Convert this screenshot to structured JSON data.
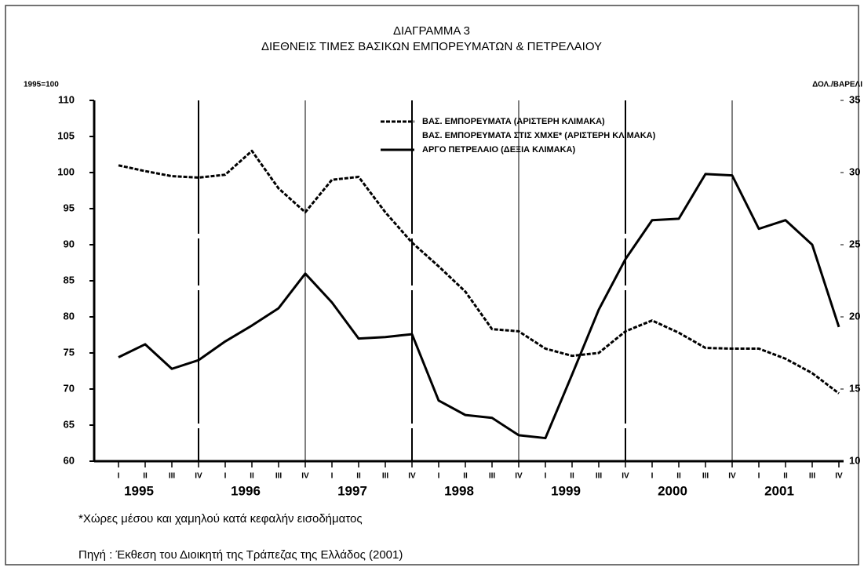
{
  "chart_data": {
    "type": "line",
    "title": "ΔΙΑΓΡΑΜΜΑ 3",
    "subtitle": "ΔΙΕΘΝΕΙΣ ΤΙΜΕΣ ΒΑΣΙΚΩΝ ΕΜΠΟΡΕΥΜΑΤΩΝ & ΠΕΤΡΕΛΑΙΟΥ",
    "y_label": "1995=100",
    "y2_label": "ΔΟΛ./ΒΑΡΕΛΙ",
    "categories": [
      "I",
      "II",
      "III",
      "IV",
      "I",
      "II",
      "III",
      "IV",
      "I",
      "II",
      "III",
      "IV",
      "I",
      "II",
      "III",
      "IV",
      "I",
      "II",
      "III",
      "IV",
      "I",
      "II",
      "III",
      "IV",
      "I",
      "II",
      "III",
      "IV"
    ],
    "year_labels": [
      "1995",
      "1996",
      "1997",
      "1998",
      "1999",
      "2000",
      "2001"
    ],
    "ylim": [
      60,
      110
    ],
    "yticks": [
      60,
      65,
      70,
      75,
      80,
      85,
      90,
      95,
      100,
      105,
      110
    ],
    "y2lim": [
      10,
      35
    ],
    "y2ticks": [
      10,
      15,
      20,
      25,
      30,
      35
    ],
    "series": [
      {
        "name": "ΒΑΣ. ΕΜΠΟΡΕΥΜΑΤΑ  (ΑΡΙΣΤΕΡΗ ΚΛΙΜΑΚΑ)",
        "color": "#000000",
        "style": "dashed",
        "values": [
          101,
          100.2,
          99.5,
          99.3,
          99.7,
          103,
          97.8,
          94.5,
          99,
          99.4,
          94.5,
          90.3,
          87,
          83.5,
          78.3,
          78,
          75.6,
          74.6,
          75,
          78,
          79.5,
          77.8,
          75.7,
          75.6,
          75.6,
          74.2,
          72.2,
          69.4
        ]
      },
      {
        "name": "ΒΑΣ. ΕΜΠΟΡΕΥΜΑΤΑ ΣΤΙΣ ΧΜΧΕ* (ΑΡΙΣΤΕΡΗ ΚΛΙΜΑΚΑ)",
        "color": "#000000",
        "style": "none",
        "values": [
          null,
          null,
          null,
          null,
          null,
          null,
          null,
          null,
          null,
          null,
          null,
          null,
          null,
          null,
          null,
          null,
          null,
          null,
          null,
          null,
          null,
          null,
          null,
          null,
          null,
          null,
          null,
          null
        ]
      },
      {
        "name": "ΑΡΓΟ ΠΕΤΡΕΛΑΙΟ (ΔΕΞΙΑ ΚΛΙΜΑΚΑ)",
        "color": "#000000",
        "style": "solid",
        "axis": "y2",
        "values": [
          17.2,
          18.1,
          16.4,
          17,
          18.3,
          19.4,
          20.6,
          23,
          21,
          18.5,
          18.6,
          18.8,
          14.2,
          13.2,
          13,
          11.8,
          11.6,
          16,
          20.5,
          24,
          26.7,
          26.8,
          29.9,
          29.8,
          26.1,
          26.7,
          25,
          19.3
        ]
      }
    ],
    "footnotes": [
      "*Χώρες μέσου και χαμηλού κατά κεφαλήν εισοδήματος",
      "Πηγή : Έκθεση του Διοικητή της Τράπεζας της Ελλάδος (2001)"
    ]
  }
}
